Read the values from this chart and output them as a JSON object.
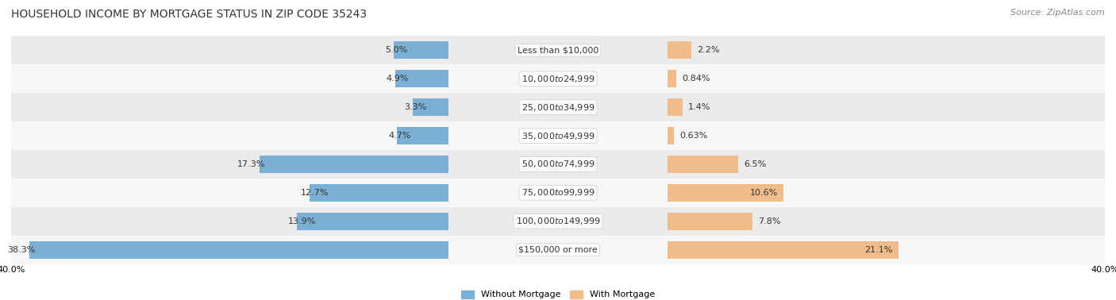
{
  "title": "HOUSEHOLD INCOME BY MORTGAGE STATUS IN ZIP CODE 35243",
  "source": "Source: ZipAtlas.com",
  "categories": [
    "Less than $10,000",
    "$10,000 to $24,999",
    "$25,000 to $34,999",
    "$35,000 to $49,999",
    "$50,000 to $74,999",
    "$75,000 to $99,999",
    "$100,000 to $149,999",
    "$150,000 or more"
  ],
  "without_mortgage": [
    5.0,
    4.9,
    3.3,
    4.7,
    17.3,
    12.7,
    13.9,
    38.3
  ],
  "with_mortgage": [
    2.2,
    0.84,
    1.4,
    0.63,
    6.5,
    10.6,
    7.8,
    21.1
  ],
  "without_mortgage_labels": [
    "5.0%",
    "4.9%",
    "3.3%",
    "4.7%",
    "17.3%",
    "12.7%",
    "13.9%",
    "38.3%"
  ],
  "with_mortgage_labels": [
    "2.2%",
    "0.84%",
    "1.4%",
    "0.63%",
    "6.5%",
    "10.6%",
    "7.8%",
    "21.1%"
  ],
  "color_without": "#7bafd4",
  "color_with": "#f0bc8c",
  "axis_limit": 40.0,
  "legend_label_without": "Without Mortgage",
  "legend_label_with": "With Mortgage",
  "row_colors": [
    "#e8e8e8",
    "#f5f5f5",
    "#e8e8e8",
    "#f5f5f5",
    "#e8e8e8",
    "#f5f5f5",
    "#e8e8e8",
    "#f5f5f5"
  ],
  "title_fontsize": 10,
  "label_fontsize": 8,
  "category_fontsize": 8,
  "source_fontsize": 8
}
